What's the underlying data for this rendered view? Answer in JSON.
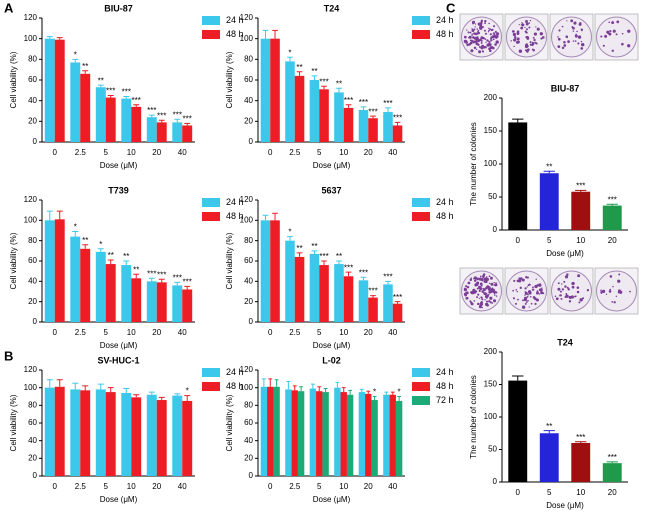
{
  "panel_labels": [
    "A",
    "B",
    "C"
  ],
  "chart_data": [
    {
      "type": "bar",
      "title": "BIU-87",
      "x_label": "Dose (μM)",
      "y_label": "Cell viability (%)",
      "categories": [
        "0",
        "2.5",
        "5",
        "10",
        "20",
        "40"
      ],
      "ylim": [
        0,
        120
      ],
      "yticks": [
        0,
        20,
        40,
        60,
        80,
        100,
        120
      ],
      "series": [
        {
          "name": "24 h",
          "color": "#3cc8ea",
          "values": [
            100,
            77,
            53,
            42,
            24,
            19
          ],
          "errors": [
            2,
            3,
            2,
            2,
            2,
            3
          ],
          "significance": [
            null,
            "*",
            "**",
            "***",
            "***",
            "***"
          ]
        },
        {
          "name": "48 h",
          "color": "#ee1c25",
          "values": [
            99,
            66,
            43,
            34,
            19,
            16
          ],
          "errors": [
            2,
            3,
            2,
            2,
            2,
            2
          ],
          "significance": [
            null,
            "**",
            "***",
            "***",
            "***",
            "***"
          ]
        }
      ]
    },
    {
      "type": "bar",
      "title": "T24",
      "x_label": "Dose (μM)",
      "y_label": "Cell viability (%)",
      "categories": [
        "0",
        "2.5",
        "5",
        "10",
        "20",
        "40"
      ],
      "ylim": [
        0,
        120
      ],
      "yticks": [
        0,
        20,
        40,
        60,
        80,
        100,
        120
      ],
      "series": [
        {
          "name": "24 h",
          "color": "#3cc8ea",
          "values": [
            100,
            78,
            60,
            48,
            31,
            29
          ],
          "errors": [
            8,
            4,
            4,
            4,
            3,
            4
          ],
          "significance": [
            null,
            "*",
            "**",
            "**",
            "***",
            "***"
          ]
        },
        {
          "name": "48 h",
          "color": "#ee1c25",
          "values": [
            100,
            64,
            51,
            33,
            23,
            16
          ],
          "errors": [
            8,
            4,
            3,
            3,
            2,
            3
          ],
          "significance": [
            null,
            "**",
            "***",
            "***",
            "***",
            "***"
          ]
        }
      ]
    },
    {
      "type": "bar",
      "title": "T739",
      "x_label": "Dose (μM)",
      "y_label": "Cell viability (%)",
      "categories": [
        "0",
        "2.5",
        "5",
        "10",
        "20",
        "40"
      ],
      "ylim": [
        0,
        120
      ],
      "yticks": [
        0,
        20,
        40,
        60,
        80,
        100,
        120
      ],
      "series": [
        {
          "name": "24 h",
          "color": "#3cc8ea",
          "values": [
            100,
            84,
            69,
            56,
            40,
            36
          ],
          "errors": [
            9,
            5,
            3,
            4,
            3,
            3
          ],
          "significance": [
            null,
            "*",
            "*",
            "**",
            "***",
            "***"
          ]
        },
        {
          "name": "48 h",
          "color": "#ee1c25",
          "values": [
            101,
            72,
            57,
            43,
            39,
            32
          ],
          "errors": [
            8,
            4,
            4,
            4,
            3,
            3
          ],
          "significance": [
            null,
            "**",
            "**",
            "**",
            "***",
            "***"
          ]
        }
      ]
    },
    {
      "type": "bar",
      "title": "5637",
      "x_label": "Dose (μM)",
      "y_label": "Cell viability (%)",
      "categories": [
        "0",
        "2.5",
        "5",
        "10",
        "20",
        "40"
      ],
      "ylim": [
        0,
        120
      ],
      "yticks": [
        0,
        20,
        40,
        60,
        80,
        100,
        120
      ],
      "series": [
        {
          "name": "24 h",
          "color": "#3cc8ea",
          "values": [
            100,
            80,
            67,
            57,
            41,
            37
          ],
          "errors": [
            5,
            4,
            3,
            3,
            3,
            3
          ],
          "significance": [
            null,
            "*",
            "**",
            "**",
            "***",
            "***"
          ]
        },
        {
          "name": "48 h",
          "color": "#ee1c25",
          "values": [
            100,
            64,
            56,
            45,
            24,
            18
          ],
          "errors": [
            7,
            4,
            4,
            4,
            2,
            2
          ],
          "significance": [
            null,
            "**",
            "***",
            "***",
            "***",
            "***"
          ]
        }
      ]
    },
    {
      "type": "bar",
      "title": "SV-HUC-1",
      "x_label": "Dose (μM)",
      "y_label": "Cell viability (%)",
      "categories": [
        "0",
        "2.5",
        "5",
        "10",
        "20",
        "40"
      ],
      "ylim": [
        0,
        120
      ],
      "yticks": [
        0,
        20,
        40,
        60,
        80,
        100,
        120
      ],
      "series": [
        {
          "name": "24 h",
          "color": "#3cc8ea",
          "values": [
            100,
            98,
            98,
            94,
            92,
            91
          ],
          "errors": [
            9,
            7,
            6,
            5,
            3,
            2
          ],
          "significance": [
            null,
            null,
            null,
            null,
            null,
            null
          ]
        },
        {
          "name": "48 h",
          "color": "#ee1c25",
          "values": [
            101,
            97,
            95,
            89,
            86,
            85
          ],
          "errors": [
            8,
            5,
            5,
            3,
            3,
            6
          ],
          "significance": [
            null,
            null,
            null,
            null,
            null,
            "*"
          ]
        }
      ]
    },
    {
      "type": "bar",
      "title": "L-02",
      "x_label": "Dose (μM)",
      "y_label": "Cell viability (%)",
      "categories": [
        "0",
        "2.5",
        "5",
        "10",
        "20",
        "40"
      ],
      "ylim": [
        0,
        120
      ],
      "yticks": [
        0,
        20,
        40,
        60,
        80,
        100,
        120
      ],
      "series": [
        {
          "name": "24 h",
          "color": "#3cc8ea",
          "values": [
            101,
            98,
            99,
            100,
            95,
            92
          ],
          "errors": [
            9,
            9,
            5,
            6,
            3,
            3
          ],
          "significance": [
            null,
            null,
            null,
            null,
            null,
            null
          ]
        },
        {
          "name": "48 h",
          "color": "#ee1c25",
          "values": [
            101,
            97,
            96,
            95,
            93,
            92
          ],
          "errors": [
            9,
            5,
            5,
            5,
            3,
            3
          ],
          "significance": [
            null,
            null,
            null,
            null,
            null,
            null
          ]
        },
        {
          "name": "72 h",
          "color": "#1caa78",
          "values": [
            101,
            96,
            95,
            92,
            86,
            85
          ],
          "errors": [
            8,
            5,
            4,
            5,
            4,
            5
          ],
          "significance": [
            null,
            null,
            null,
            null,
            "*",
            "*"
          ]
        }
      ]
    },
    {
      "type": "bar",
      "title": "BIU-87",
      "x_label": "Dose (μM)",
      "y_label": "The number of colonies",
      "categories": [
        "0",
        "5",
        "10",
        "20"
      ],
      "ylim": [
        0,
        200
      ],
      "yticks": [
        0,
        50,
        100,
        150,
        200
      ],
      "series": [
        {
          "colors": [
            "#000000",
            "#2424d8",
            "#a00f0f",
            "#1f9a4a"
          ],
          "values": [
            163,
            86,
            58,
            37
          ],
          "errors": [
            5,
            3,
            2,
            2
          ],
          "significance": [
            null,
            "**",
            "***",
            "***"
          ]
        }
      ]
    },
    {
      "type": "bar",
      "title": "T24",
      "x_label": "Dose (μM)",
      "y_label": "The number of colonies",
      "categories": [
        "0",
        "5",
        "10",
        "20"
      ],
      "ylim": [
        0,
        200
      ],
      "yticks": [
        0,
        50,
        100,
        150,
        200
      ],
      "series": [
        {
          "colors": [
            "#000000",
            "#2424d8",
            "#a00f0f",
            "#1f9a4a"
          ],
          "values": [
            156,
            75,
            60,
            29
          ],
          "errors": [
            7,
            4,
            2,
            2
          ],
          "significance": [
            null,
            "**",
            "***",
            "***"
          ]
        }
      ]
    }
  ]
}
